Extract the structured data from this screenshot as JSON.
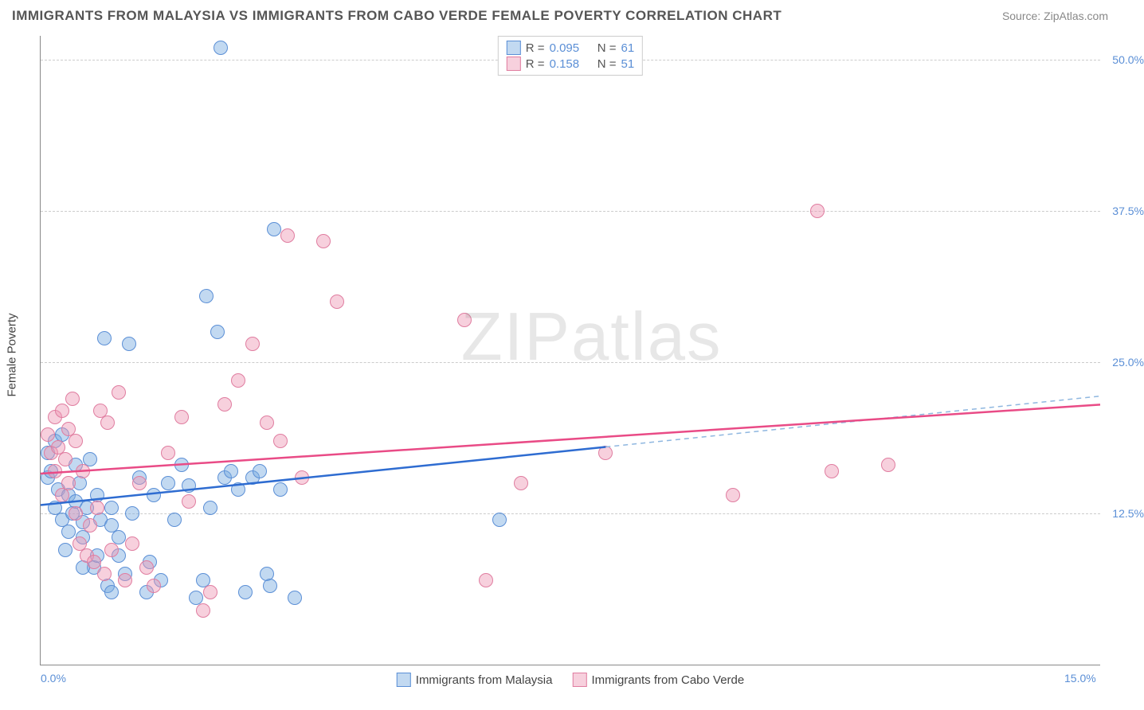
{
  "title": "IMMIGRANTS FROM MALAYSIA VS IMMIGRANTS FROM CABO VERDE FEMALE POVERTY CORRELATION CHART",
  "source": "Source: ZipAtlas.com",
  "ylabel": "Female Poverty",
  "watermark": "ZIPatlas",
  "chart": {
    "type": "scatter",
    "xlim": [
      0,
      15
    ],
    "ylim": [
      0,
      52
    ],
    "xticks": [
      {
        "value": 0,
        "label": "0.0%"
      },
      {
        "value": 15,
        "label": "15.0%"
      }
    ],
    "yticks": [
      {
        "value": 12.5,
        "label": "12.5%"
      },
      {
        "value": 25.0,
        "label": "25.0%"
      },
      {
        "value": 37.5,
        "label": "37.5%"
      },
      {
        "value": 50.0,
        "label": "50.0%"
      }
    ],
    "background_color": "#ffffff",
    "grid_color": "#cccccc",
    "marker_size": 18,
    "marker_opacity": 0.55,
    "series": [
      {
        "name": "Immigrants from Malaysia",
        "color_fill": "rgba(120,170,225,0.45)",
        "color_stroke": "#5b8fd6",
        "line_color": "#2e6cd1",
        "dash_color": "#8fb7e0",
        "r": "0.095",
        "n": "61",
        "trend": {
          "x1": 0,
          "y1": 13.2,
          "x2_solid": 8.0,
          "y2_solid": 18.0,
          "x2_dash": 15,
          "y2_dash": 22.2
        },
        "points": [
          [
            0.1,
            17.5
          ],
          [
            0.1,
            15.5
          ],
          [
            0.2,
            13.0
          ],
          [
            0.2,
            18.5
          ],
          [
            0.15,
            16.0
          ],
          [
            0.25,
            14.5
          ],
          [
            0.3,
            12.0
          ],
          [
            0.3,
            19.0
          ],
          [
            0.35,
            9.5
          ],
          [
            0.4,
            11.0
          ],
          [
            0.4,
            14.0
          ],
          [
            0.45,
            12.5
          ],
          [
            0.5,
            13.5
          ],
          [
            0.5,
            16.5
          ],
          [
            0.55,
            15.0
          ],
          [
            0.6,
            10.5
          ],
          [
            0.6,
            11.8
          ],
          [
            0.65,
            13.0
          ],
          [
            0.7,
            17.0
          ],
          [
            0.75,
            8.0
          ],
          [
            0.8,
            9.0
          ],
          [
            0.8,
            14.0
          ],
          [
            0.85,
            12.0
          ],
          [
            0.9,
            27.0
          ],
          [
            0.95,
            6.5
          ],
          [
            1.0,
            11.5
          ],
          [
            1.0,
            13.0
          ],
          [
            1.1,
            9.0
          ],
          [
            1.1,
            10.5
          ],
          [
            1.2,
            7.5
          ],
          [
            1.25,
            26.5
          ],
          [
            1.3,
            12.5
          ],
          [
            1.4,
            15.5
          ],
          [
            1.5,
            6.0
          ],
          [
            1.55,
            8.5
          ],
          [
            1.6,
            14.0
          ],
          [
            1.7,
            7.0
          ],
          [
            1.8,
            15.0
          ],
          [
            1.9,
            12.0
          ],
          [
            2.0,
            16.5
          ],
          [
            2.1,
            14.8
          ],
          [
            2.2,
            5.5
          ],
          [
            2.3,
            7.0
          ],
          [
            2.35,
            30.5
          ],
          [
            2.4,
            13.0
          ],
          [
            2.5,
            27.5
          ],
          [
            2.55,
            51.0
          ],
          [
            2.6,
            15.5
          ],
          [
            2.7,
            16.0
          ],
          [
            2.8,
            14.5
          ],
          [
            2.9,
            6.0
          ],
          [
            3.0,
            15.5
          ],
          [
            3.1,
            16.0
          ],
          [
            3.2,
            7.5
          ],
          [
            3.25,
            6.5
          ],
          [
            3.3,
            36.0
          ],
          [
            3.4,
            14.5
          ],
          [
            3.6,
            5.5
          ],
          [
            6.5,
            12.0
          ],
          [
            1.0,
            6.0
          ],
          [
            0.6,
            8.0
          ]
        ]
      },
      {
        "name": "Immigrants from Cabo Verde",
        "color_fill": "rgba(238,150,180,0.45)",
        "color_stroke": "#e07da0",
        "line_color": "#e94b86",
        "dash_color": "#e94b86",
        "r": "0.158",
        "n": "51",
        "trend": {
          "x1": 0,
          "y1": 15.8,
          "x2_solid": 15,
          "y2_solid": 21.5,
          "x2_dash": 15,
          "y2_dash": 21.5
        },
        "points": [
          [
            0.1,
            19.0
          ],
          [
            0.15,
            17.5
          ],
          [
            0.2,
            16.0
          ],
          [
            0.2,
            20.5
          ],
          [
            0.25,
            18.0
          ],
          [
            0.3,
            14.0
          ],
          [
            0.3,
            21.0
          ],
          [
            0.35,
            17.0
          ],
          [
            0.4,
            19.5
          ],
          [
            0.4,
            15.0
          ],
          [
            0.45,
            22.0
          ],
          [
            0.5,
            12.5
          ],
          [
            0.5,
            18.5
          ],
          [
            0.55,
            10.0
          ],
          [
            0.6,
            16.0
          ],
          [
            0.65,
            9.0
          ],
          [
            0.7,
            11.5
          ],
          [
            0.75,
            8.5
          ],
          [
            0.8,
            13.0
          ],
          [
            0.85,
            21.0
          ],
          [
            0.9,
            7.5
          ],
          [
            0.95,
            20.0
          ],
          [
            1.0,
            9.5
          ],
          [
            1.1,
            22.5
          ],
          [
            1.2,
            7.0
          ],
          [
            1.3,
            10.0
          ],
          [
            1.4,
            15.0
          ],
          [
            1.5,
            8.0
          ],
          [
            1.6,
            6.5
          ],
          [
            1.8,
            17.5
          ],
          [
            2.0,
            20.5
          ],
          [
            2.1,
            13.5
          ],
          [
            2.3,
            4.5
          ],
          [
            2.4,
            6.0
          ],
          [
            2.6,
            21.5
          ],
          [
            2.8,
            23.5
          ],
          [
            3.0,
            26.5
          ],
          [
            3.2,
            20.0
          ],
          [
            3.4,
            18.5
          ],
          [
            3.5,
            35.5
          ],
          [
            3.7,
            15.5
          ],
          [
            4.0,
            35.0
          ],
          [
            4.2,
            30.0
          ],
          [
            6.0,
            28.5
          ],
          [
            6.3,
            7.0
          ],
          [
            6.8,
            15.0
          ],
          [
            8.0,
            17.5
          ],
          [
            9.8,
            14.0
          ],
          [
            11.2,
            16.0
          ],
          [
            11.0,
            37.5
          ],
          [
            12.0,
            16.5
          ]
        ]
      }
    ]
  },
  "legend_bottom": [
    {
      "label": "Immigrants from Malaysia",
      "fill": "rgba(120,170,225,0.45)",
      "stroke": "#5b8fd6"
    },
    {
      "label": "Immigrants from Cabo Verde",
      "fill": "rgba(238,150,180,0.45)",
      "stroke": "#e07da0"
    }
  ]
}
